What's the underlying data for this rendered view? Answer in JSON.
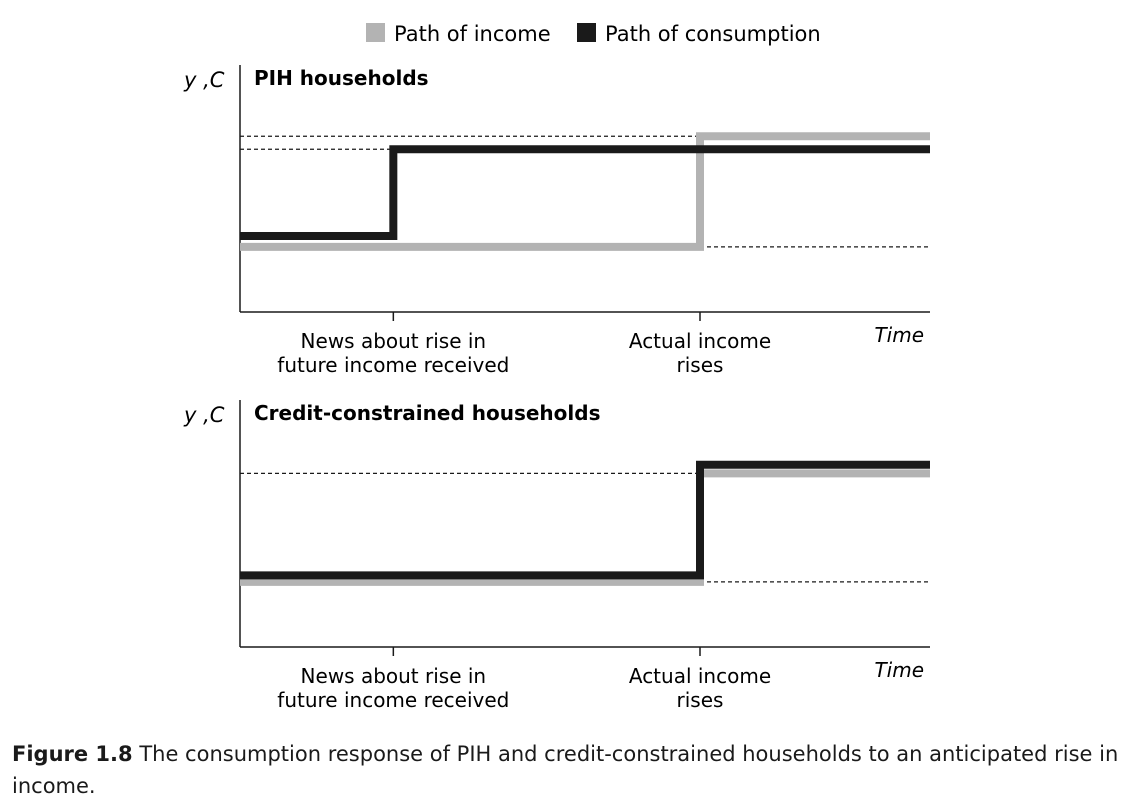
{
  "legend": [
    {
      "label": "Path of income",
      "color": "#b3b3b3"
    },
    {
      "label": "Path of consumption",
      "color": "#1a1a1a"
    }
  ],
  "caption": {
    "label": "Figure 1.8",
    "text": "The consumption response of PIH and credit-constrained households to an anticipated rise in income."
  },
  "chart_data": [
    {
      "type": "line",
      "title": "PIH households",
      "ylabel": "y ,C",
      "xlabel": "Time",
      "x_ticks": [
        {
          "x": 1,
          "label": "News about rise in future income received"
        },
        {
          "x": 3,
          "label": "Actual income rises"
        }
      ],
      "xlim": [
        0,
        4.5
      ],
      "ylim": [
        0,
        10
      ],
      "series": [
        {
          "name": "Path of income",
          "color": "#b3b3b3",
          "x": [
            0,
            3,
            3,
            4.5
          ],
          "y": [
            3,
            3,
            8.1,
            8.1
          ]
        },
        {
          "name": "Path of consumption",
          "color": "#1a1a1a",
          "x": [
            0,
            1,
            1,
            4.5
          ],
          "y": [
            3.5,
            3.5,
            7.5,
            7.5
          ]
        }
      ]
    },
    {
      "type": "line",
      "title": "Credit-constrained households",
      "ylabel": "y ,C",
      "xlabel": "Time",
      "x_ticks": [
        {
          "x": 1,
          "label": "News about rise in future income received"
        },
        {
          "x": 3,
          "label": "Actual income rises"
        }
      ],
      "xlim": [
        0,
        4.5
      ],
      "ylim": [
        0,
        10
      ],
      "series": [
        {
          "name": "Path of income",
          "color": "#b3b3b3",
          "x": [
            0,
            3,
            3,
            4.5
          ],
          "y": [
            3,
            3,
            8,
            8
          ]
        },
        {
          "name": "Path of consumption",
          "color": "#1a1a1a",
          "x": [
            0,
            3,
            3,
            4.5
          ],
          "y": [
            3.3,
            3.3,
            8.4,
            8.4
          ]
        }
      ]
    }
  ]
}
